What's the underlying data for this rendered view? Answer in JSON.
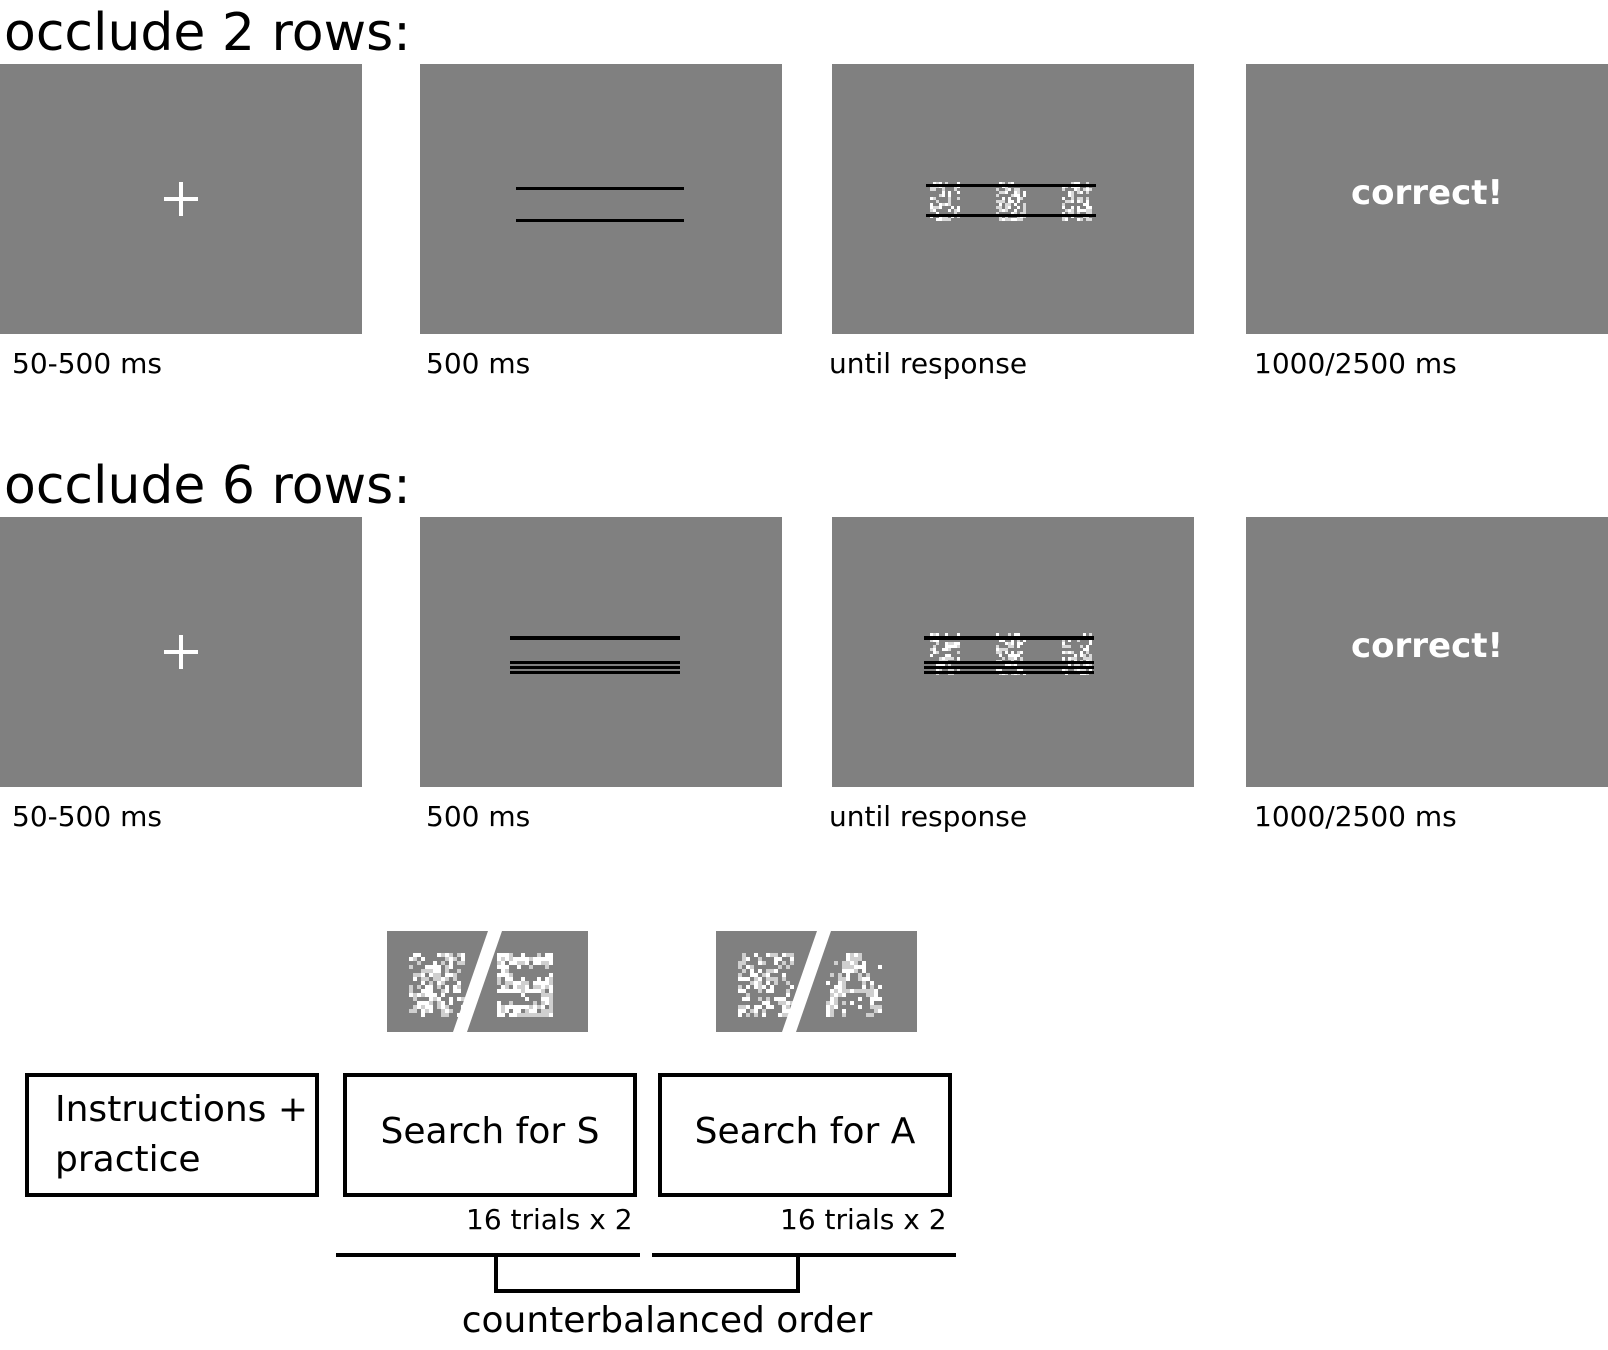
{
  "conditions": [
    {
      "title": "occlude 2 rows:",
      "frames": [
        {
          "kind": "fixation",
          "caption": "50-500 ms"
        },
        {
          "kind": "occluder",
          "caption": "500 ms"
        },
        {
          "kind": "search",
          "caption": "until response"
        },
        {
          "kind": "feedback",
          "feedback_text": "correct!",
          "caption": "1000/2500 ms"
        }
      ]
    },
    {
      "title": "occlude 6 rows:",
      "frames": [
        {
          "kind": "fixation",
          "caption": "50-500 ms"
        },
        {
          "kind": "occluder",
          "caption": "500 ms"
        },
        {
          "kind": "search",
          "caption": "until response"
        },
        {
          "kind": "feedback",
          "feedback_text": "correct!",
          "caption": "1000/2500 ms"
        }
      ]
    }
  ],
  "procedure": {
    "instructions": {
      "line1": "Instructions +",
      "line2": "practice"
    },
    "blocks": [
      {
        "label": "Search for S",
        "trials": "16 trials x 2"
      },
      {
        "label": "Search for A",
        "trials": "16 trials x 2"
      }
    ],
    "bracket_label": "counterbalanced order"
  },
  "colors": {
    "panel_gray": "#808080",
    "noise_white": "#ffffff",
    "line_black": "#000000"
  }
}
